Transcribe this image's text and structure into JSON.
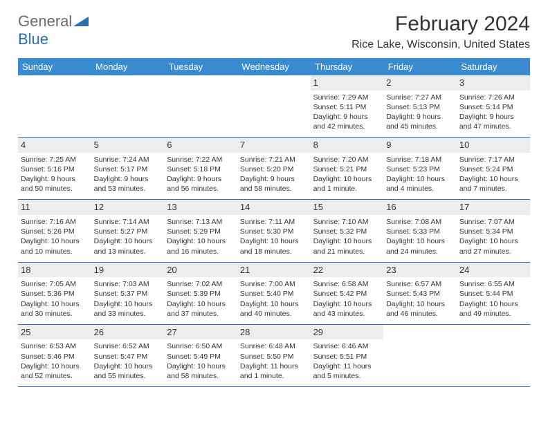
{
  "logo": {
    "word1": "General",
    "word2": "Blue"
  },
  "title": "February 2024",
  "subtitle": "Rice Lake, Wisconsin, United States",
  "colors": {
    "header_bg": "#3a8bd0",
    "header_text": "#ffffff",
    "accent": "#2a6db5",
    "daynum_bg": "#ededed",
    "text": "#333333",
    "logo_gray": "#6b6b6b"
  },
  "daysOfWeek": [
    "Sunday",
    "Monday",
    "Tuesday",
    "Wednesday",
    "Thursday",
    "Friday",
    "Saturday"
  ],
  "weeks": [
    [
      {
        "n": "",
        "lines": []
      },
      {
        "n": "",
        "lines": []
      },
      {
        "n": "",
        "lines": []
      },
      {
        "n": "",
        "lines": []
      },
      {
        "n": "1",
        "lines": [
          "Sunrise: 7:29 AM",
          "Sunset: 5:11 PM",
          "Daylight: 9 hours and 42 minutes."
        ]
      },
      {
        "n": "2",
        "lines": [
          "Sunrise: 7:27 AM",
          "Sunset: 5:13 PM",
          "Daylight: 9 hours and 45 minutes."
        ]
      },
      {
        "n": "3",
        "lines": [
          "Sunrise: 7:26 AM",
          "Sunset: 5:14 PM",
          "Daylight: 9 hours and 47 minutes."
        ]
      }
    ],
    [
      {
        "n": "4",
        "lines": [
          "Sunrise: 7:25 AM",
          "Sunset: 5:16 PM",
          "Daylight: 9 hours and 50 minutes."
        ]
      },
      {
        "n": "5",
        "lines": [
          "Sunrise: 7:24 AM",
          "Sunset: 5:17 PM",
          "Daylight: 9 hours and 53 minutes."
        ]
      },
      {
        "n": "6",
        "lines": [
          "Sunrise: 7:22 AM",
          "Sunset: 5:18 PM",
          "Daylight: 9 hours and 56 minutes."
        ]
      },
      {
        "n": "7",
        "lines": [
          "Sunrise: 7:21 AM",
          "Sunset: 5:20 PM",
          "Daylight: 9 hours and 58 minutes."
        ]
      },
      {
        "n": "8",
        "lines": [
          "Sunrise: 7:20 AM",
          "Sunset: 5:21 PM",
          "Daylight: 10 hours and 1 minute."
        ]
      },
      {
        "n": "9",
        "lines": [
          "Sunrise: 7:18 AM",
          "Sunset: 5:23 PM",
          "Daylight: 10 hours and 4 minutes."
        ]
      },
      {
        "n": "10",
        "lines": [
          "Sunrise: 7:17 AM",
          "Sunset: 5:24 PM",
          "Daylight: 10 hours and 7 minutes."
        ]
      }
    ],
    [
      {
        "n": "11",
        "lines": [
          "Sunrise: 7:16 AM",
          "Sunset: 5:26 PM",
          "Daylight: 10 hours and 10 minutes."
        ]
      },
      {
        "n": "12",
        "lines": [
          "Sunrise: 7:14 AM",
          "Sunset: 5:27 PM",
          "Daylight: 10 hours and 13 minutes."
        ]
      },
      {
        "n": "13",
        "lines": [
          "Sunrise: 7:13 AM",
          "Sunset: 5:29 PM",
          "Daylight: 10 hours and 16 minutes."
        ]
      },
      {
        "n": "14",
        "lines": [
          "Sunrise: 7:11 AM",
          "Sunset: 5:30 PM",
          "Daylight: 10 hours and 18 minutes."
        ]
      },
      {
        "n": "15",
        "lines": [
          "Sunrise: 7:10 AM",
          "Sunset: 5:32 PM",
          "Daylight: 10 hours and 21 minutes."
        ]
      },
      {
        "n": "16",
        "lines": [
          "Sunrise: 7:08 AM",
          "Sunset: 5:33 PM",
          "Daylight: 10 hours and 24 minutes."
        ]
      },
      {
        "n": "17",
        "lines": [
          "Sunrise: 7:07 AM",
          "Sunset: 5:34 PM",
          "Daylight: 10 hours and 27 minutes."
        ]
      }
    ],
    [
      {
        "n": "18",
        "lines": [
          "Sunrise: 7:05 AM",
          "Sunset: 5:36 PM",
          "Daylight: 10 hours and 30 minutes."
        ]
      },
      {
        "n": "19",
        "lines": [
          "Sunrise: 7:03 AM",
          "Sunset: 5:37 PM",
          "Daylight: 10 hours and 33 minutes."
        ]
      },
      {
        "n": "20",
        "lines": [
          "Sunrise: 7:02 AM",
          "Sunset: 5:39 PM",
          "Daylight: 10 hours and 37 minutes."
        ]
      },
      {
        "n": "21",
        "lines": [
          "Sunrise: 7:00 AM",
          "Sunset: 5:40 PM",
          "Daylight: 10 hours and 40 minutes."
        ]
      },
      {
        "n": "22",
        "lines": [
          "Sunrise: 6:58 AM",
          "Sunset: 5:42 PM",
          "Daylight: 10 hours and 43 minutes."
        ]
      },
      {
        "n": "23",
        "lines": [
          "Sunrise: 6:57 AM",
          "Sunset: 5:43 PM",
          "Daylight: 10 hours and 46 minutes."
        ]
      },
      {
        "n": "24",
        "lines": [
          "Sunrise: 6:55 AM",
          "Sunset: 5:44 PM",
          "Daylight: 10 hours and 49 minutes."
        ]
      }
    ],
    [
      {
        "n": "25",
        "lines": [
          "Sunrise: 6:53 AM",
          "Sunset: 5:46 PM",
          "Daylight: 10 hours and 52 minutes."
        ]
      },
      {
        "n": "26",
        "lines": [
          "Sunrise: 6:52 AM",
          "Sunset: 5:47 PM",
          "Daylight: 10 hours and 55 minutes."
        ]
      },
      {
        "n": "27",
        "lines": [
          "Sunrise: 6:50 AM",
          "Sunset: 5:49 PM",
          "Daylight: 10 hours and 58 minutes."
        ]
      },
      {
        "n": "28",
        "lines": [
          "Sunrise: 6:48 AM",
          "Sunset: 5:50 PM",
          "Daylight: 11 hours and 1 minute."
        ]
      },
      {
        "n": "29",
        "lines": [
          "Sunrise: 6:46 AM",
          "Sunset: 5:51 PM",
          "Daylight: 11 hours and 5 minutes."
        ]
      },
      {
        "n": "",
        "lines": []
      },
      {
        "n": "",
        "lines": []
      }
    ]
  ]
}
